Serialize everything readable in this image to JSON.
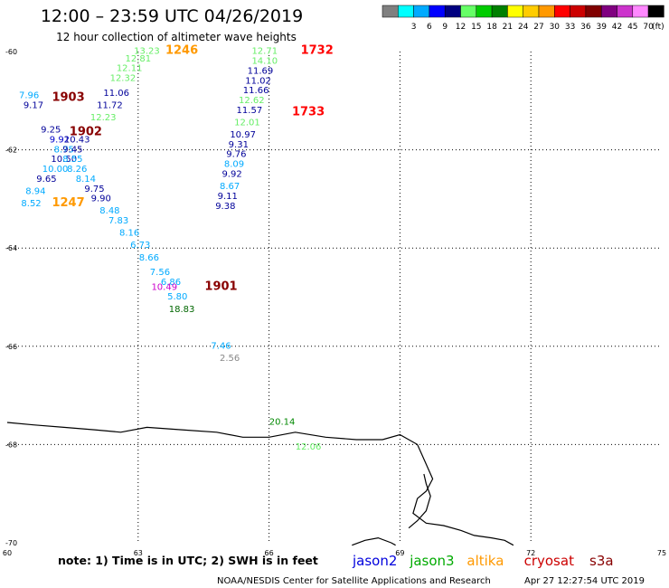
{
  "header": {
    "title": "12:00 – 23:59 UTC 04/26/2019",
    "subtitle": "12 hour collection of altimeter wave heights"
  },
  "colorbar": {
    "unit": "(ft)",
    "swatches": [
      {
        "color": "#808080",
        "label": ""
      },
      {
        "color": "#00ffff",
        "label": "3"
      },
      {
        "color": "#00aaff",
        "label": "6"
      },
      {
        "color": "#0000ff",
        "label": "9"
      },
      {
        "color": "#000080",
        "label": "12"
      },
      {
        "color": "#66ff66",
        "label": "15"
      },
      {
        "color": "#00cc00",
        "label": "18"
      },
      {
        "color": "#008000",
        "label": "21"
      },
      {
        "color": "#ffff00",
        "label": "24"
      },
      {
        "color": "#ffcc00",
        "label": "27"
      },
      {
        "color": "#ff9900",
        "label": "30"
      },
      {
        "color": "#ff0000",
        "label": "33"
      },
      {
        "color": "#cc0000",
        "label": "36"
      },
      {
        "color": "#800000",
        "label": "39"
      },
      {
        "color": "#800080",
        "label": "42"
      },
      {
        "color": "#cc33cc",
        "label": "45"
      },
      {
        "color": "#ff88ff",
        "label": "70"
      },
      {
        "color": "#000000",
        "label": ""
      }
    ]
  },
  "axes": {
    "lon_ticks": [
      "60",
      "63",
      "66",
      "69",
      "72",
      "75"
    ],
    "lat_ticks": [
      "-60",
      "-62",
      "-64",
      "-66",
      "-68",
      "-70"
    ]
  },
  "footer": {
    "note": "note: 1) Time is in UTC; 2) SWH is in feet",
    "legend": [
      {
        "label": "jason2",
        "color": "#0000dd"
      },
      {
        "label": "jason3",
        "color": "#00aa00"
      },
      {
        "label": "altika",
        "color": "#ff9900"
      },
      {
        "label": "cryosat",
        "color": "#cc0000"
      },
      {
        "label": "s3a",
        "color": "#880000"
      }
    ],
    "credit": "NOAA/NESDIS Center for Satellite Applications and Research",
    "timestamp": "Apr 27 12:27:54 UTC 2019"
  },
  "observations": [
    {
      "lon": 63.2,
      "lat": -60.05,
      "text": "13.23",
      "color": "#66ee66"
    },
    {
      "lon": 63.0,
      "lat": -60.2,
      "text": "12.81",
      "color": "#66ee66"
    },
    {
      "lon": 62.8,
      "lat": -60.4,
      "text": "12.11",
      "color": "#66ee66"
    },
    {
      "lon": 62.65,
      "lat": -60.6,
      "text": "12.32",
      "color": "#66ee66"
    },
    {
      "lon": 62.5,
      "lat": -60.9,
      "text": "11.06",
      "color": "#000099"
    },
    {
      "lon": 62.35,
      "lat": -61.15,
      "text": "11.72",
      "color": "#000099"
    },
    {
      "lon": 62.2,
      "lat": -61.4,
      "text": "12.23",
      "color": "#66ee66"
    },
    {
      "lon": 60.5,
      "lat": -60.95,
      "text": "7.96",
      "color": "#00aaff"
    },
    {
      "lon": 60.6,
      "lat": -61.15,
      "text": "9.17",
      "color": "#000099"
    },
    {
      "lon": 61.0,
      "lat": -61.65,
      "text": "9.25",
      "color": "#000099"
    },
    {
      "lon": 61.2,
      "lat": -61.85,
      "text": "9.92",
      "color": "#0000cc"
    },
    {
      "lon": 61.6,
      "lat": -61.85,
      "text": "10.43",
      "color": "#000099"
    },
    {
      "lon": 61.3,
      "lat": -62.05,
      "text": "8.75",
      "color": "#00aaff"
    },
    {
      "lon": 61.5,
      "lat": -62.05,
      "text": "9.45",
      "color": "#000099"
    },
    {
      "lon": 61.3,
      "lat": -62.25,
      "text": "10.50",
      "color": "#000099"
    },
    {
      "lon": 61.5,
      "lat": -62.25,
      "text": "8.55",
      "color": "#00aaff"
    },
    {
      "lon": 61.1,
      "lat": -62.45,
      "text": "10.00",
      "color": "#00aaff"
    },
    {
      "lon": 61.6,
      "lat": -62.45,
      "text": "8.26",
      "color": "#00aaff"
    },
    {
      "lon": 60.9,
      "lat": -62.65,
      "text": "9.65",
      "color": "#000099"
    },
    {
      "lon": 61.8,
      "lat": -62.65,
      "text": "8.14",
      "color": "#00aaff"
    },
    {
      "lon": 60.65,
      "lat": -62.9,
      "text": "8.94",
      "color": "#00aaff"
    },
    {
      "lon": 62.0,
      "lat": -62.85,
      "text": "9.75",
      "color": "#000099"
    },
    {
      "lon": 60.55,
      "lat": -63.15,
      "text": "8.52",
      "color": "#00aaff"
    },
    {
      "lon": 62.15,
      "lat": -63.05,
      "text": "9.90",
      "color": "#000099"
    },
    {
      "lon": 62.35,
      "lat": -63.3,
      "text": "8.48",
      "color": "#00aaff"
    },
    {
      "lon": 62.55,
      "lat": -63.5,
      "text": "7.83",
      "color": "#00aaff"
    },
    {
      "lon": 62.8,
      "lat": -63.75,
      "text": "8.16",
      "color": "#00aaff"
    },
    {
      "lon": 63.05,
      "lat": -64.0,
      "text": "6.73",
      "color": "#00aaff"
    },
    {
      "lon": 63.25,
      "lat": -64.25,
      "text": "8.66",
      "color": "#00aaff"
    },
    {
      "lon": 63.5,
      "lat": -64.55,
      "text": "7.56",
      "color": "#00aaff"
    },
    {
      "lon": 63.75,
      "lat": -64.75,
      "text": "6.86",
      "color": "#00aaff"
    },
    {
      "lon": 63.6,
      "lat": -64.85,
      "text": "10.49",
      "color": "#cc00cc"
    },
    {
      "lon": 63.9,
      "lat": -65.05,
      "text": "5.80",
      "color": "#00aaff"
    },
    {
      "lon": 64.0,
      "lat": -65.3,
      "text": "18.83",
      "color": "#006600"
    },
    {
      "lon": 65.9,
      "lat": -60.05,
      "text": "12.71",
      "color": "#66ee66"
    },
    {
      "lon": 65.9,
      "lat": -60.25,
      "text": "14.10",
      "color": "#66ee66"
    },
    {
      "lon": 65.8,
      "lat": -60.45,
      "text": "11.69",
      "color": "#000099"
    },
    {
      "lon": 65.75,
      "lat": -60.65,
      "text": "11.02",
      "color": "#000099"
    },
    {
      "lon": 65.7,
      "lat": -60.85,
      "text": "11.66",
      "color": "#000099"
    },
    {
      "lon": 65.6,
      "lat": -61.05,
      "text": "12.62",
      "color": "#66ee66"
    },
    {
      "lon": 65.55,
      "lat": -61.25,
      "text": "11.57",
      "color": "#000099"
    },
    {
      "lon": 65.5,
      "lat": -61.5,
      "text": "12.01",
      "color": "#66ee66"
    },
    {
      "lon": 65.4,
      "lat": -61.75,
      "text": "10.97",
      "color": "#000099"
    },
    {
      "lon": 65.3,
      "lat": -61.95,
      "text": "9.31",
      "color": "#000099"
    },
    {
      "lon": 65.25,
      "lat": -62.15,
      "text": "9.76",
      "color": "#000099"
    },
    {
      "lon": 65.2,
      "lat": -62.35,
      "text": "8.09",
      "color": "#00aaff"
    },
    {
      "lon": 65.15,
      "lat": -62.55,
      "text": "9.92",
      "color": "#000099"
    },
    {
      "lon": 65.1,
      "lat": -62.8,
      "text": "8.67",
      "color": "#00aaff"
    },
    {
      "lon": 65.05,
      "lat": -63.0,
      "text": "9.11",
      "color": "#000099"
    },
    {
      "lon": 65.0,
      "lat": -63.2,
      "text": "9.38",
      "color": "#000099"
    },
    {
      "lon": 64.9,
      "lat": -66.05,
      "text": "7.46",
      "color": "#00aaff"
    },
    {
      "lon": 65.1,
      "lat": -66.3,
      "text": "2.56",
      "color": "#888888"
    },
    {
      "lon": 66.3,
      "lat": -67.6,
      "text": "20.14",
      "color": "#008800"
    },
    {
      "lon": 66.9,
      "lat": -68.1,
      "text": "12.06",
      "color": "#66ee66"
    }
  ],
  "time_labels": [
    {
      "lon": 64.0,
      "lat": -60.05,
      "text": "1246",
      "color": "#ff9900"
    },
    {
      "lon": 61.4,
      "lat": -63.15,
      "text": "1247",
      "color": "#ff9900"
    },
    {
      "lon": 67.1,
      "lat": -60.05,
      "text": "1732",
      "color": "#ff0000"
    },
    {
      "lon": 66.9,
      "lat": -61.3,
      "text": "1733",
      "color": "#ff0000"
    },
    {
      "lon": 61.4,
      "lat": -61.0,
      "text": "1903",
      "color": "#880000"
    },
    {
      "lon": 61.8,
      "lat": -61.7,
      "text": "1902",
      "color": "#880000"
    },
    {
      "lon": 64.9,
      "lat": -64.85,
      "text": "1901",
      "color": "#880000"
    }
  ],
  "coastline": {
    "main": [
      [
        60.0,
        -67.55
      ],
      [
        60.6,
        -67.6
      ],
      [
        61.3,
        -67.65
      ],
      [
        62.0,
        -67.7
      ],
      [
        62.6,
        -67.75
      ],
      [
        63.2,
        -67.65
      ],
      [
        64.0,
        -67.7
      ],
      [
        64.8,
        -67.75
      ],
      [
        65.4,
        -67.85
      ],
      [
        66.0,
        -67.85
      ],
      [
        66.6,
        -67.75
      ],
      [
        67.3,
        -67.85
      ],
      [
        68.0,
        -67.9
      ],
      [
        68.6,
        -67.9
      ],
      [
        69.0,
        -67.8
      ],
      [
        69.4,
        -68.0
      ],
      [
        69.6,
        -68.4
      ],
      [
        69.75,
        -68.7
      ],
      [
        69.6,
        -68.95
      ],
      [
        69.4,
        -69.1
      ],
      [
        69.3,
        -69.4
      ],
      [
        69.6,
        -69.6
      ],
      [
        70.0,
        -69.65
      ],
      [
        70.4,
        -69.75
      ],
      [
        70.7,
        -69.85
      ],
      [
        71.1,
        -69.9
      ],
      [
        71.4,
        -69.95
      ],
      [
        71.6,
        -70.05
      ]
    ],
    "left_fragment": [
      [
        67.9,
        -70.05
      ],
      [
        68.2,
        -69.95
      ],
      [
        68.5,
        -69.9
      ],
      [
        68.8,
        -70.0
      ],
      [
        68.9,
        -70.05
      ]
    ],
    "island": [
      [
        69.2,
        -69.7
      ],
      [
        69.4,
        -69.55
      ],
      [
        69.6,
        -69.35
      ],
      [
        69.7,
        -69.05
      ],
      [
        69.6,
        -68.8
      ],
      [
        69.55,
        -68.6
      ]
    ]
  }
}
